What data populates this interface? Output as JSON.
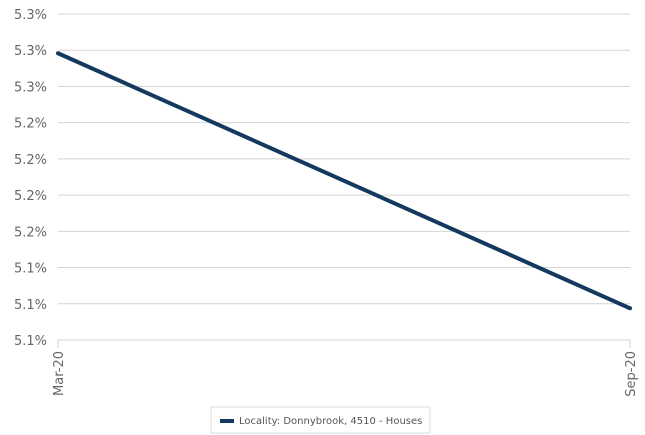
{
  "chart_data": {
    "type": "line",
    "categories": [
      "Mar-20",
      "Sep-20"
    ],
    "series": [
      {
        "name": "Locality: Donnybrook, 4510 - Houses",
        "values": [
          0.0529,
          0.05121
        ],
        "color": "#133a5e"
      }
    ],
    "y_tick_values": [
      0.051,
      0.05124,
      0.05148,
      0.05172,
      0.05196,
      0.0522,
      0.05244,
      0.05268,
      0.05292,
      0.05316
    ],
    "y_tick_labels": [
      "5.1%",
      "5.1%",
      "5.1%",
      "5.2%",
      "5.2%",
      "5.2%",
      "5.2%",
      "5.3%",
      "5.3%",
      "5.3%"
    ],
    "ylim": [
      0.051,
      0.05316
    ],
    "grid": true,
    "legend_position": "bottom",
    "title": "",
    "xlabel": "",
    "ylabel": ""
  },
  "legend": {
    "label": "Locality: Donnybrook, 4510 - Houses"
  }
}
